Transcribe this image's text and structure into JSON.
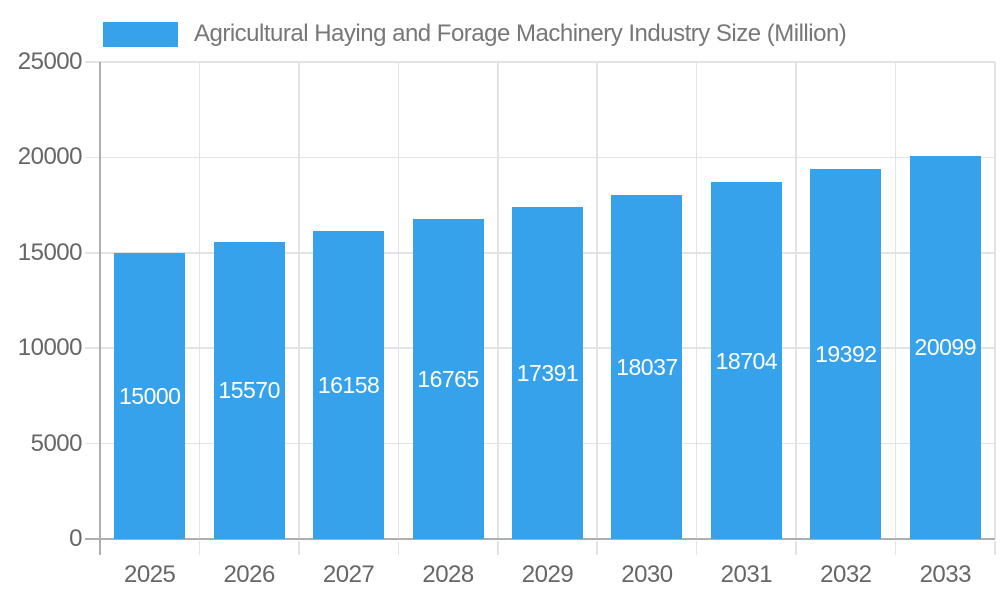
{
  "legend": {
    "label": "Agricultural Haying and Forage Machinery Industry Size (Million)"
  },
  "chart_data": {
    "type": "bar",
    "title": "Agricultural Haying and Forage Machinery Industry Size (Million)",
    "categories": [
      "2025",
      "2026",
      "2027",
      "2028",
      "2029",
      "2030",
      "2031",
      "2032",
      "2033"
    ],
    "series": [
      {
        "name": "Agricultural Haying and Forage Machinery Industry Size (Million)",
        "values": [
          15000,
          15570,
          16158,
          16765,
          17391,
          18037,
          18704,
          19392,
          20099
        ]
      }
    ],
    "data_labels_shown": true,
    "xlabel": "",
    "ylabel": "",
    "ylim": [
      0,
      25000
    ],
    "y_ticks": [
      0,
      5000,
      10000,
      15000,
      20000,
      25000
    ],
    "grid": true,
    "legend_position": "top-left"
  },
  "colors": {
    "bar": "#36A2EB",
    "grid": "#e3e3e3",
    "axis": "#aeaeae",
    "tick_text": "#666666",
    "legend_text": "#777777",
    "data_label_text": "#ffffff",
    "background": "#ffffff"
  }
}
